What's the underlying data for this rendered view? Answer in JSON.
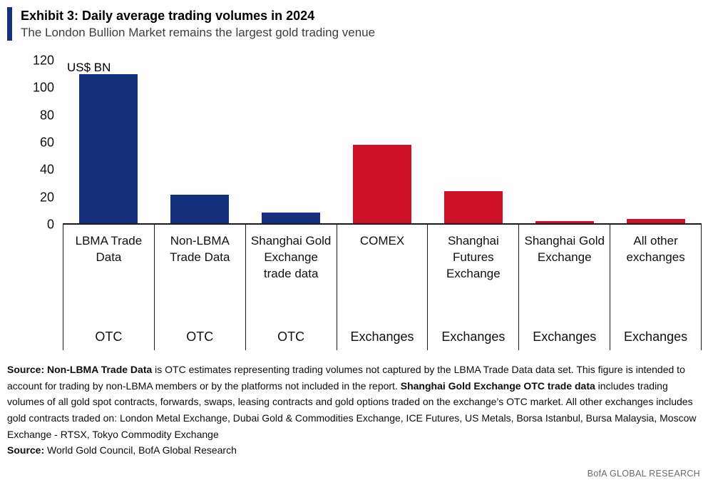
{
  "header": {
    "title": "Exhibit 3: Daily average trading volumes in 2024",
    "subtitle": "The London Bullion Market remains the largest gold trading venue"
  },
  "chart_data": {
    "type": "bar",
    "title": "Exhibit 3: Daily average trading volumes in 2024",
    "unit_label": "US$ BN",
    "ylim": [
      0,
      120
    ],
    "yticks": [
      0,
      20,
      40,
      60,
      80,
      100,
      120
    ],
    "grid": false,
    "categories": [
      "LBMA Trade Data",
      "Non-LBMA Trade Data",
      "Shanghai Gold Exchange trade data",
      "COMEX",
      "Shanghai Futures Exchange",
      "Shanghai Gold Exchange",
      "All other exchanges"
    ],
    "groups": [
      "OTC",
      "OTC",
      "OTC",
      "Exchanges",
      "Exchanges",
      "Exchanges",
      "Exchanges"
    ],
    "values": [
      110,
      21,
      8,
      58,
      23.5,
      1.5,
      3
    ],
    "colors": {
      "otc": "#15317E",
      "exchanges": "#CE1126"
    }
  },
  "footnote": {
    "note_segments": [
      {
        "text": "Source: Non-LBMA Trade Data",
        "bold": true
      },
      {
        "text": " is OTC estimates representing trading volumes not captured by the LBMA Trade Data data set. This figure is intended to account for trading by non-LBMA members or by the platforms not included in the report. ",
        "bold": false
      },
      {
        "text": "Shanghai Gold Exchange OTC trade data",
        "bold": true
      },
      {
        "text": " includes trading volumes of all gold spot contracts, forwards, swaps, leasing contracts and gold options traded on the exchange’s OTC market. All other exchanges includes gold contracts traded on: London Metal Exchange, Dubai Gold & Commodities Exchange, ICE Futures, US Metals, Borsa Istanbul, Bursa Malaysia, Moscow Exchange - RTSX, Tokyo Commodity Exchange",
        "bold": false
      }
    ],
    "source_segments": [
      {
        "text": "Source:",
        "bold": true
      },
      {
        "text": " World Gold Council, BofA Global Research",
        "bold": false
      }
    ]
  },
  "branding": "BofA GLOBAL RESEARCH"
}
